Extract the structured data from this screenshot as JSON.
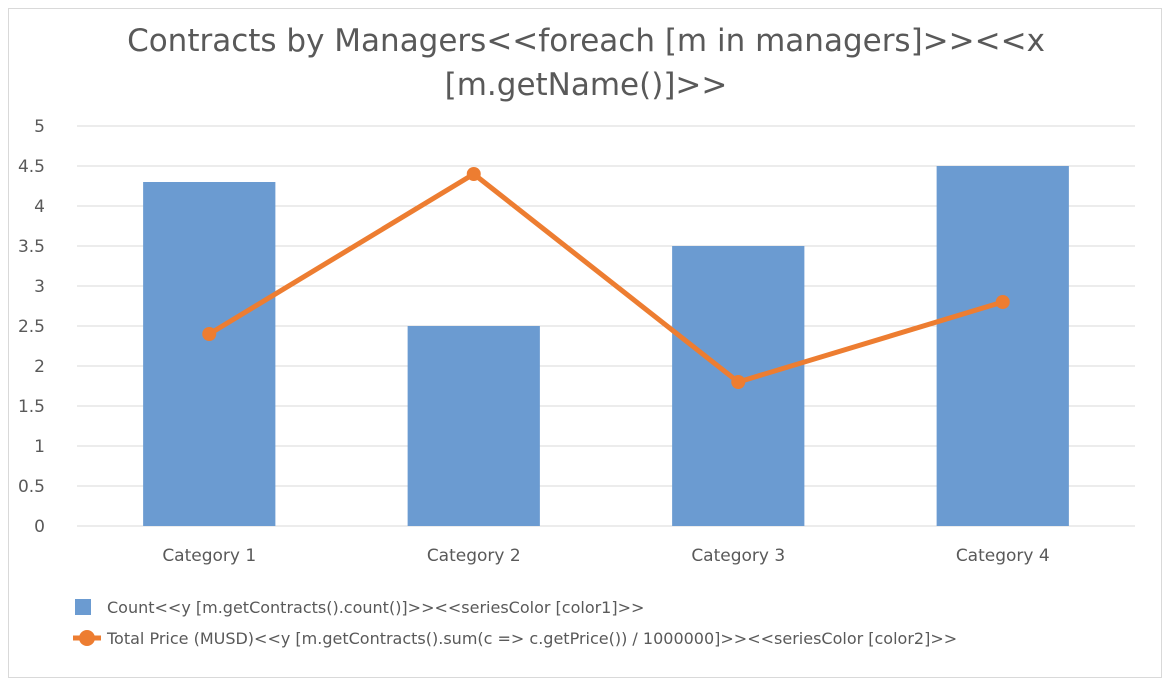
{
  "chart_data": {
    "type": "bar",
    "title_lines": [
      "Contracts by Managers<<foreach [m in managers]>><<x",
      "[m.getName()]>>"
    ],
    "categories": [
      "Category 1",
      "Category 2",
      "Category 3",
      "Category 4"
    ],
    "ylim": [
      0,
      5
    ],
    "yticks": [
      "0",
      "0.5",
      "1",
      "1.5",
      "2",
      "2.5",
      "3",
      "3.5",
      "4",
      "4.5",
      "5"
    ],
    "grid": true,
    "legend_position": "bottom-left",
    "series": [
      {
        "name": "Count<<y [m.getContracts().count()]>><<seriesColor [color1]>>",
        "type": "bar",
        "color": "#6b9bd1",
        "values": [
          4.3,
          2.5,
          3.5,
          4.5
        ]
      },
      {
        "name": "Total Price (MUSD)<<y [m.getContracts().sum(c => c.getPrice()) / 1000000]>><<seriesColor [color2]>>",
        "type": "line",
        "color": "#ed7d31",
        "values": [
          2.4,
          4.4,
          1.8,
          2.8
        ]
      }
    ]
  }
}
